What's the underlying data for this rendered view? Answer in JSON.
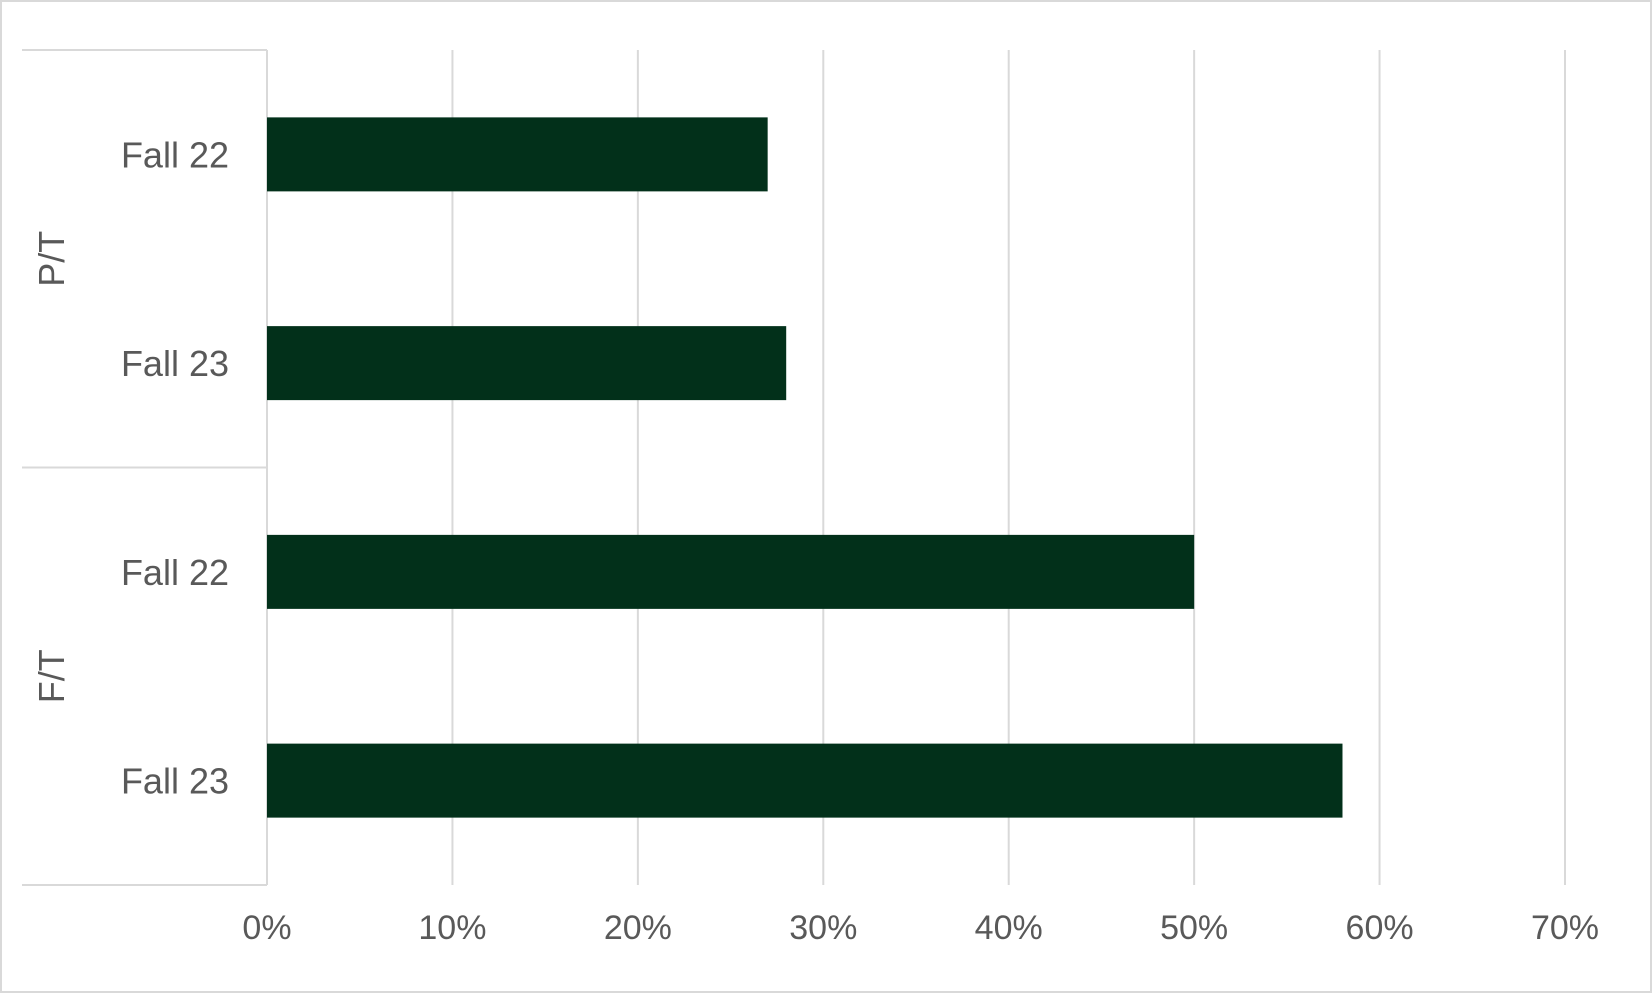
{
  "chart_data": {
    "type": "bar",
    "orientation": "horizontal",
    "title": "",
    "xlabel": "",
    "ylabel": "",
    "xlim": [
      0,
      0.7
    ],
    "x_ticks": [
      0,
      0.1,
      0.2,
      0.3,
      0.4,
      0.5,
      0.6,
      0.7
    ],
    "x_tick_labels": [
      "0%",
      "10%",
      "20%",
      "30%",
      "40%",
      "50%",
      "60%",
      "70%"
    ],
    "grid": "vertical",
    "legend": "none",
    "bar_color": "#02301a",
    "groups": [
      {
        "label": "P/T",
        "categories": [
          "Fall 22",
          "Fall 23"
        ],
        "values": [
          0.27,
          0.28
        ]
      },
      {
        "label": "F/T",
        "categories": [
          "Fall 22",
          "Fall 23"
        ],
        "values": [
          0.5,
          0.58
        ]
      }
    ]
  }
}
